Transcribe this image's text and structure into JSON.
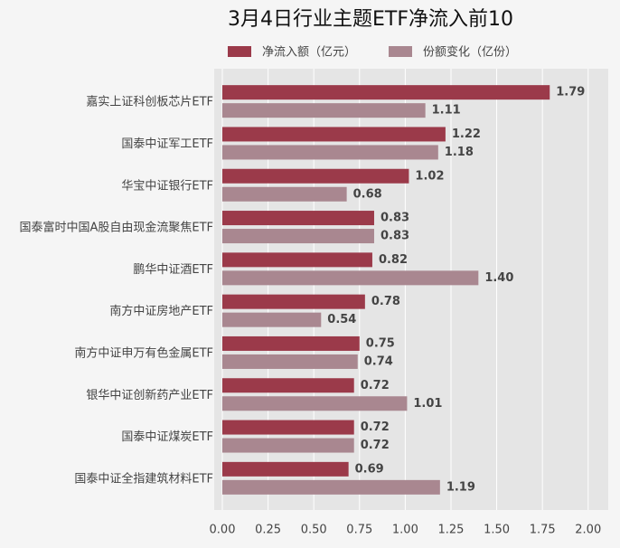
{
  "chart_data": {
    "type": "bar",
    "orientation": "horizontal",
    "title": "3月4日行业主题ETF净流入前10",
    "categories": [
      "嘉实上证科创板芯片ETF",
      "国泰中证军工ETF",
      "华宝中证银行ETF",
      "国泰富时中国A股自由现金流聚焦ETF",
      "鹏华中证酒ETF",
      "南方中证房地产ETF",
      "南方中证申万有色金属ETF",
      "银华中证创新药产业ETF",
      "国泰中证煤炭ETF",
      "国泰中证全指建筑材料ETF"
    ],
    "series": [
      {
        "name": "净流入额（亿元）",
        "color": "#9b3a4a",
        "values": [
          1.79,
          1.22,
          1.02,
          0.83,
          0.82,
          0.78,
          0.75,
          0.72,
          0.72,
          0.69
        ],
        "value_labels": [
          "1.79",
          "1.22",
          "1.02",
          "0.83",
          "0.82",
          "0.78",
          "0.75",
          "0.72",
          "0.72",
          "0.69"
        ]
      },
      {
        "name": "份额变化（亿份）",
        "color": "#a98790",
        "values": [
          1.11,
          1.18,
          0.68,
          0.83,
          1.4,
          0.54,
          0.74,
          1.01,
          0.72,
          1.19
        ],
        "value_labels": [
          "1.11",
          "1.18",
          "0.68",
          "0.83",
          "1.40",
          "0.54",
          "0.74",
          "1.01",
          "0.72",
          "1.19"
        ]
      }
    ],
    "xlim": [
      0,
      2.1
    ],
    "xticks": [
      {
        "value": 0,
        "label": "0.00"
      },
      {
        "value": 0.25,
        "label": "0.25"
      },
      {
        "value": 0.5,
        "label": "0.50"
      },
      {
        "value": 0.75,
        "label": "0.75"
      },
      {
        "value": 1,
        "label": "1.00"
      },
      {
        "value": 1.25,
        "label": "1.25"
      },
      {
        "value": 1.5,
        "label": "1.50"
      },
      {
        "value": 1.75,
        "label": "1.75"
      },
      {
        "value": 2,
        "label": "2.00"
      }
    ],
    "grid": true,
    "legend": "top"
  }
}
